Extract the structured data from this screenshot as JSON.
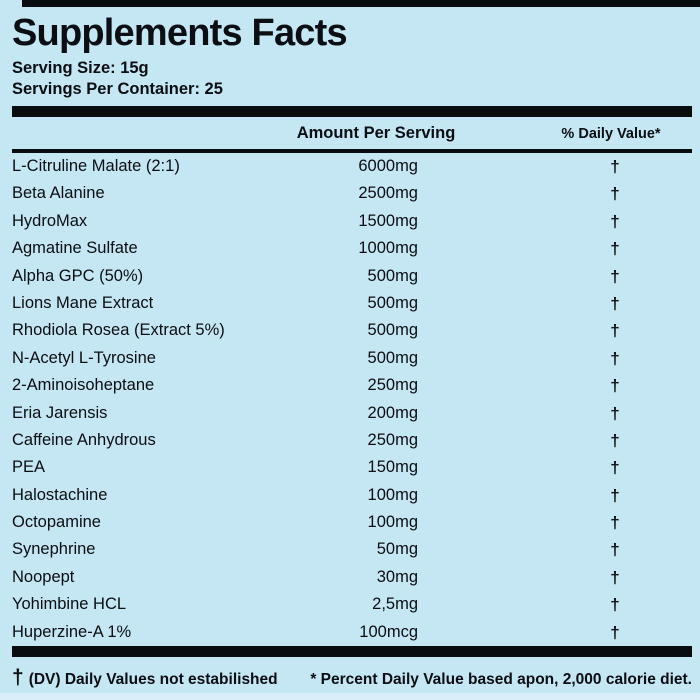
{
  "label": {
    "title": "Supplements Facts",
    "serving_size": "Serving Size: 15g",
    "servings_per_container": "Servings Per Container: 25",
    "columns": {
      "amount_header": "Amount Per Serving",
      "daily_value_header": "% Daily Value*"
    },
    "rows": [
      {
        "name": "L-Citruline Malate (2:1)",
        "amount": "6000mg",
        "dv": "†"
      },
      {
        "name": "Beta Alanine",
        "amount": "2500mg",
        "dv": "†"
      },
      {
        "name": "HydroMax",
        "amount": "1500mg",
        "dv": "†"
      },
      {
        "name": "Agmatine Sulfate",
        "amount": "1000mg",
        "dv": "†"
      },
      {
        "name": "Alpha GPC (50%)",
        "amount": "500mg",
        "dv": "†"
      },
      {
        "name": "Lions Mane Extract",
        "amount": "500mg",
        "dv": "†"
      },
      {
        "name": "Rhodiola Rosea (Extract 5%)",
        "amount": "500mg",
        "dv": "†"
      },
      {
        "name": "N-Acetyl L-Tyrosine",
        "amount": "500mg",
        "dv": "†"
      },
      {
        "name": "2-Aminoisoheptane",
        "amount": "250mg",
        "dv": "†"
      },
      {
        "name": "Eria Jarensis",
        "amount": "200mg",
        "dv": "†"
      },
      {
        "name": "Caffeine Anhydrous",
        "amount": "250mg",
        "dv": "†"
      },
      {
        "name": "PEA",
        "amount": "150mg",
        "dv": "†"
      },
      {
        "name": "Halostachine",
        "amount": "100mg",
        "dv": "†"
      },
      {
        "name": "Octopamine",
        "amount": "100mg",
        "dv": "†"
      },
      {
        "name": "Synephrine",
        "amount": "50mg",
        "dv": "†"
      },
      {
        "name": "Noopept",
        "amount": "30mg",
        "dv": "†"
      },
      {
        "name": "Yohimbine HCL",
        "amount": "2,5mg",
        "dv": "†"
      },
      {
        "name": "Huperzine-A 1%",
        "amount": "100mcg",
        "dv": "†"
      }
    ],
    "footnotes": {
      "dagger_symbol": "†",
      "left_text": "(DV) Daily Values not estabilished",
      "right_text": "* Percent Daily Value based apon, 2,000 calorie diet."
    },
    "colors": {
      "background": "#c5e6f3",
      "ink": "#0b0e12"
    }
  }
}
